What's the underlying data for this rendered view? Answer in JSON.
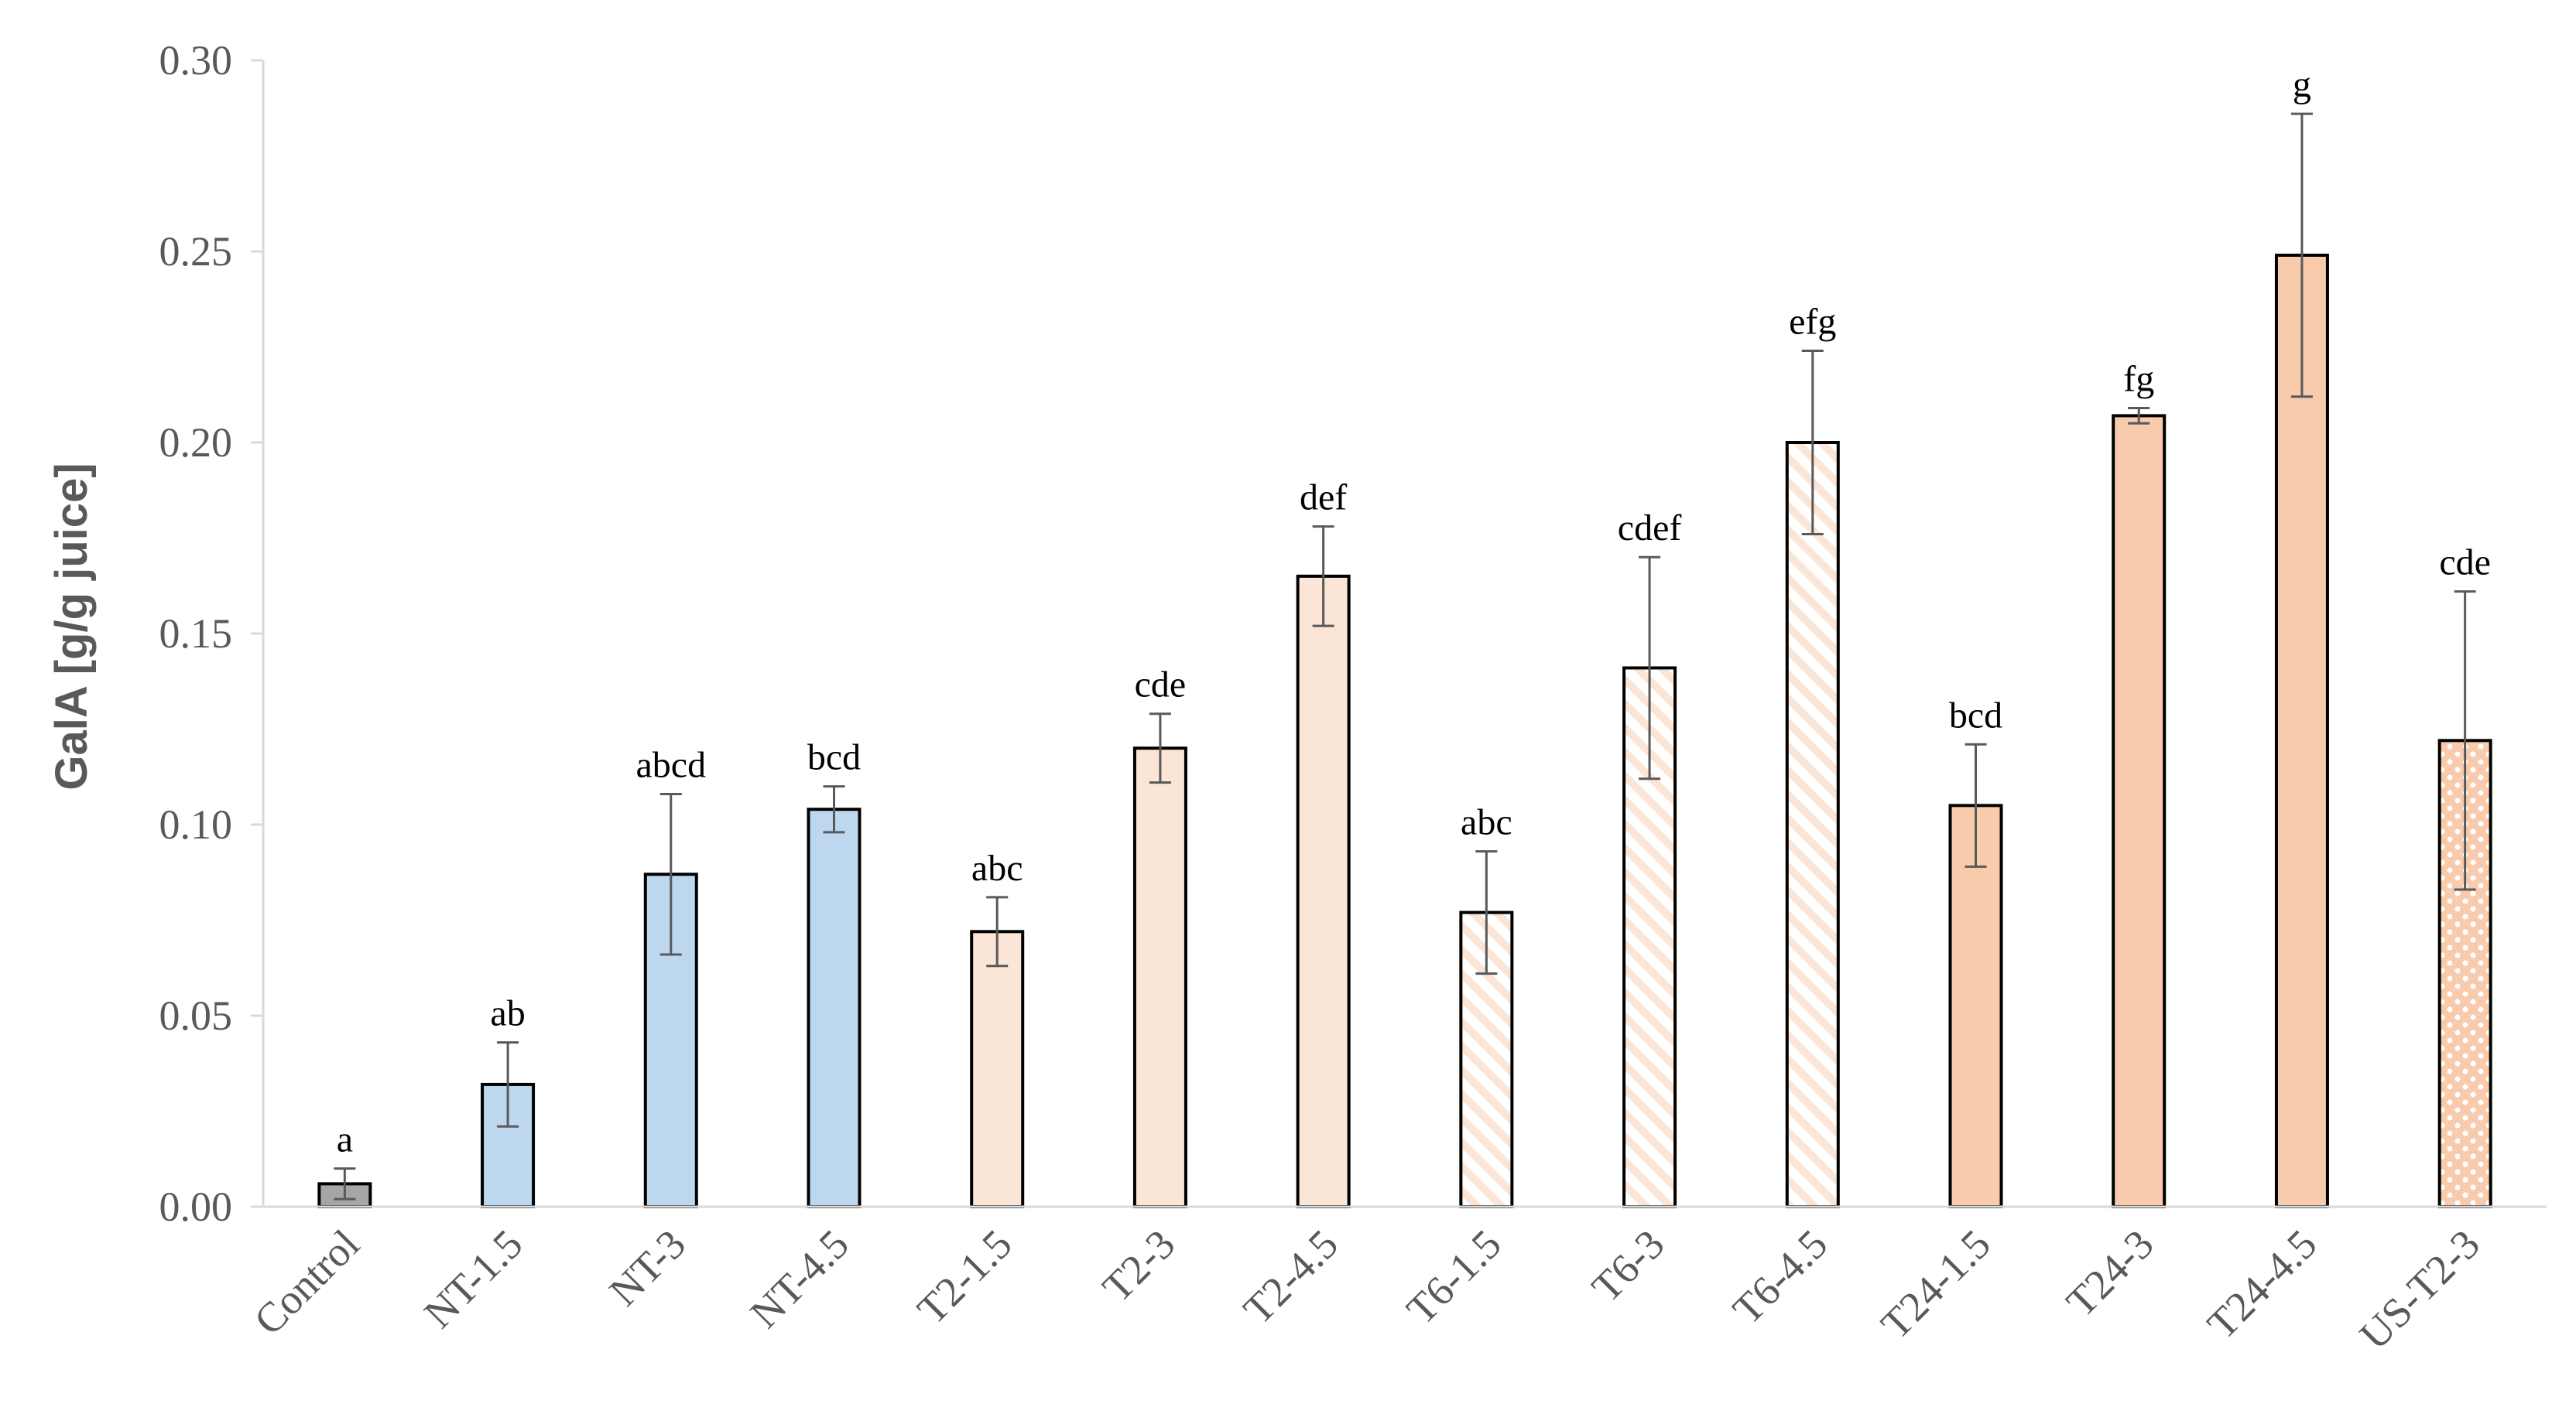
{
  "chart_data": {
    "type": "bar",
    "title": "",
    "xlabel": "",
    "ylabel": "GalA [g/g juice]",
    "ylim": [
      0,
      0.3
    ],
    "yticks": [
      "0.00",
      "0.05",
      "0.10",
      "0.15",
      "0.20",
      "0.25",
      "0.30"
    ],
    "grid": false,
    "legend": "none",
    "categories": [
      "Control",
      "NT-1.5",
      "NT-3",
      "NT-4.5",
      "T2-1.5",
      "T2-3",
      "T2-4.5",
      "T6-1.5",
      "T6-3",
      "T6-4.5",
      "T24-1.5",
      "T24-3",
      "T24-4.5",
      "US-T2-3"
    ],
    "values": [
      0.006,
      0.032,
      0.087,
      0.104,
      0.072,
      0.12,
      0.165,
      0.077,
      0.141,
      0.2,
      0.105,
      0.207,
      0.249,
      0.122
    ],
    "errors": [
      0.004,
      0.011,
      0.021,
      0.006,
      0.009,
      0.009,
      0.013,
      0.016,
      0.029,
      0.024,
      0.016,
      0.002,
      0.037,
      0.039
    ],
    "significance_labels": [
      "a",
      "ab",
      "abcd",
      "bcd",
      "abc",
      "cde",
      "def",
      "abc",
      "cdef",
      "efg",
      "bcd",
      "fg",
      "g",
      "cde"
    ],
    "bar_colors": [
      "#a6a6a6",
      "#bdd7ee",
      "#bdd7ee",
      "#bdd7ee",
      "#fbe5d6",
      "#fbe5d6",
      "#fbe5d6",
      "#fbe5d6",
      "#fbe5d6",
      "#fbe5d6",
      "#f8cbad",
      "#f8cbad",
      "#f8cbad",
      "#f8cbad"
    ],
    "bar_patterns": [
      "solid",
      "solid",
      "solid",
      "solid",
      "solid",
      "solid",
      "solid",
      "diagonal-hatch",
      "diagonal-hatch",
      "diagonal-hatch",
      "solid",
      "solid",
      "solid",
      "dots"
    ]
  }
}
